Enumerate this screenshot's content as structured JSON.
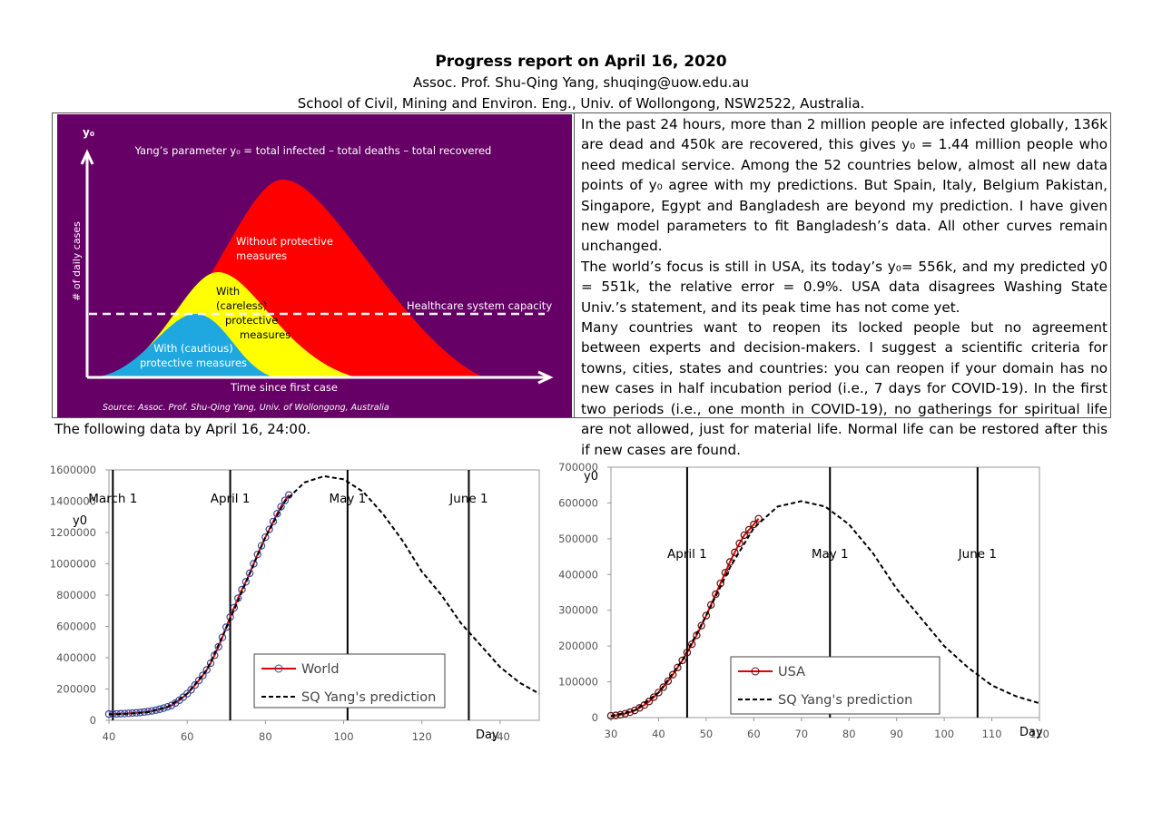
{
  "header": {
    "title": "Progress report on April 16, 2020",
    "author": "Assoc. Prof. Shu-Qing Yang, shuqing@uow.edu.au",
    "affiliation": "School of Civil, Mining and Environ. Eng., Univ. of Wollongong, NSW2522, Australia."
  },
  "illustration": {
    "y_label": "y₀",
    "axis_label": "# of daily cases",
    "definition": "Yang’s parameter y₀ = total infected – total deaths – total recovered",
    "without": [
      "Without protective",
      "measures"
    ],
    "careless": [
      "With",
      "(careless)",
      "protective",
      "measures"
    ],
    "cautious": [
      "With (cautious)",
      "protective measures"
    ],
    "capacity": "Healthcare system capacity",
    "x_label": "Time since first case",
    "source": "Source: Assoc. Prof. Shu-Qing Yang, Univ. of Wollongong, Australia"
  },
  "text": {
    "paragraphs": [
      "In the past 24 hours, more than 2 million people are infected globally, 136k are dead and 450k are recovered, this gives y₀ = 1.44 million people who need medical service. Among the 52 countries below, almost all new data points of y₀ agree with my predictions. But Spain, Italy, Belgium Pakistan, Singapore, Egypt and Bangladesh are beyond my prediction. I have given new model parameters to fit Bangladesh’s data. All other curves remain unchanged.",
      "The world’s focus is still in USA, its today’s y₀= 556k, and my predicted y0 = 551k, the relative error = 0.9%. USA data disagrees Washing State Univ.’s statement, and its peak time has not come yet.",
      "Many countries want to reopen its locked people but no agreement between experts and decision-makers. I suggest a scientific criteria for towns, cities, states and countries: you can reopen if your domain has no new cases in half incubation period (i.e., 7 days for COVID-19). In the first two periods (i.e., one month in COVID-19), no gatherings for spiritual life are not allowed, just for material life. Normal life can be restored after this if new cases are found."
    ]
  },
  "note": "The following data by April 16, 24:00.",
  "chart_data": [
    {
      "type": "line",
      "y_label": "y0",
      "x_label": "Day",
      "xlim": [
        40,
        150
      ],
      "xticks": [
        40,
        60,
        80,
        100,
        120,
        140
      ],
      "ylim": [
        0,
        1600000
      ],
      "yticks": [
        0,
        200000,
        400000,
        600000,
        800000,
        1000000,
        1200000,
        1400000,
        1600000
      ],
      "vlines": [
        {
          "x": 41,
          "label": "March 1"
        },
        {
          "x": 71,
          "label": "April 1"
        },
        {
          "x": 101,
          "label": "May 1"
        },
        {
          "x": 132,
          "label": "June 1"
        }
      ],
      "series": [
        {
          "name": "World",
          "color": "#e00000",
          "marker_color": "#3a4a9a",
          "marker": true,
          "dashed": false,
          "x": [
            40,
            41,
            42,
            43,
            44,
            45,
            46,
            47,
            48,
            49,
            50,
            51,
            52,
            53,
            54,
            55,
            56,
            57,
            58,
            59,
            60,
            61,
            62,
            63,
            64,
            65,
            66,
            67,
            68,
            69,
            70,
            71,
            72,
            73,
            74,
            75,
            76,
            77,
            78,
            79,
            80,
            81,
            82,
            83,
            84,
            85,
            86
          ],
          "values": [
            40000,
            40500,
            41000,
            42000,
            43000,
            44500,
            46000,
            48000,
            50000,
            53000,
            56000,
            60000,
            65000,
            71000,
            78000,
            86000,
            95000,
            110000,
            128000,
            148000,
            170000,
            195000,
            225000,
            255000,
            287000,
            322000,
            365000,
            415000,
            470000,
            530000,
            595000,
            660000,
            720000,
            780000,
            835000,
            885000,
            940000,
            1000000,
            1060000,
            1115000,
            1170000,
            1220000,
            1270000,
            1320000,
            1365000,
            1405000,
            1440000
          ]
        },
        {
          "name": "SQ Yang's prediction",
          "color": "#000000",
          "marker": false,
          "dashed": true,
          "x": [
            40,
            45,
            50,
            55,
            60,
            65,
            70,
            75,
            80,
            85,
            90,
            95,
            100,
            105,
            110,
            115,
            120,
            125,
            130,
            135,
            140,
            145,
            150
          ],
          "values": [
            38000,
            42000,
            52000,
            85000,
            170000,
            320000,
            590000,
            880000,
            1170000,
            1400000,
            1520000,
            1560000,
            1540000,
            1460000,
            1320000,
            1150000,
            950000,
            800000,
            620000,
            480000,
            340000,
            240000,
            170000
          ]
        }
      ]
    },
    {
      "type": "line",
      "y_label": "y0",
      "x_label": "Day",
      "xlim": [
        30,
        120
      ],
      "xticks": [
        30,
        40,
        50,
        60,
        70,
        80,
        90,
        100,
        110,
        120
      ],
      "ylim": [
        0,
        700000
      ],
      "yticks": [
        0,
        100000,
        200000,
        300000,
        400000,
        500000,
        600000,
        700000
      ],
      "vlines": [
        {
          "x": 46,
          "label": "April 1"
        },
        {
          "x": 76,
          "label": "May 1"
        },
        {
          "x": 107,
          "label": "June 1"
        }
      ],
      "series": [
        {
          "name": "USA",
          "color": "#e00000",
          "marker_color": "#5a1010",
          "marker": true,
          "dashed": false,
          "x": [
            30,
            31,
            32,
            33,
            34,
            35,
            36,
            37,
            38,
            39,
            40,
            41,
            42,
            43,
            44,
            45,
            46,
            47,
            48,
            49,
            50,
            51,
            52,
            53,
            54,
            55,
            56,
            57,
            58,
            59,
            60,
            61
          ],
          "values": [
            5000,
            6000,
            8000,
            11000,
            15000,
            20000,
            27000,
            35000,
            45000,
            57000,
            70000,
            85000,
            102000,
            120000,
            140000,
            160000,
            182000,
            205000,
            230000,
            257000,
            285000,
            315000,
            345000,
            375000,
            405000,
            435000,
            462000,
            487000,
            510000,
            525000,
            540000,
            556000
          ]
        },
        {
          "name": "SQ Yang's prediction",
          "color": "#000000",
          "marker": false,
          "dashed": true,
          "x": [
            30,
            35,
            40,
            45,
            50,
            55,
            60,
            65,
            70,
            75,
            80,
            85,
            90,
            95,
            100,
            105,
            110,
            115,
            120
          ],
          "values": [
            4000,
            20000,
            70000,
            160000,
            285000,
            420000,
            530000,
            590000,
            605000,
            590000,
            540000,
            460000,
            360000,
            280000,
            200000,
            140000,
            90000,
            60000,
            40000
          ]
        }
      ]
    }
  ]
}
